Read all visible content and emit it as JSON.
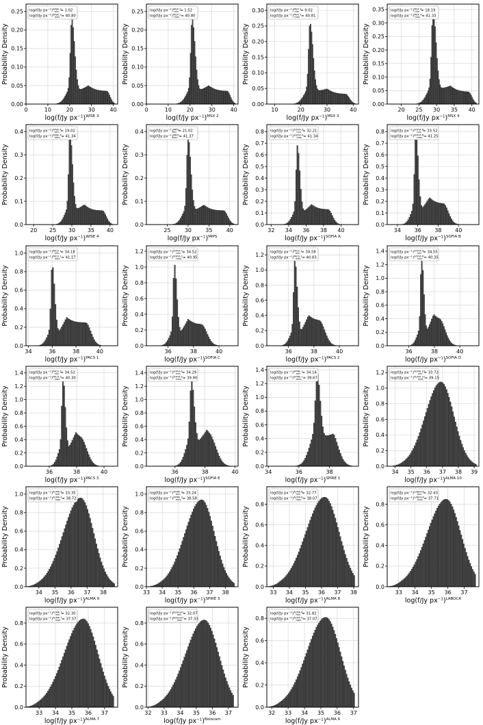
{
  "figure": {
    "ylabel": "Probability Density",
    "xlabel_base": "log(f/Jy px",
    "xlabel_exp": "−1",
    "xlabel_close": ")",
    "legend_prefix": "log(f/Jy px",
    "legend_min": "min",
    "legend_max": "max",
    "bar_color": "#4a4a4a",
    "edge_color": "#000000",
    "grid_color": "#d0d0d0"
  },
  "chart_data": [
    {
      "type": "bar",
      "band": "WISE 3",
      "x_ticks": [
        0,
        10,
        20,
        30,
        40
      ],
      "y_ticks": [
        0.0,
        0.05,
        0.1,
        0.15,
        0.2,
        0.25
      ],
      "xlim": [
        0,
        42
      ],
      "ylim": [
        0,
        0.27
      ],
      "min": "1.02",
      "max": "40.80",
      "peak": 21,
      "peak_y": 0.23,
      "spike": 0.8,
      "w1": 1.4,
      "w2": 2.8,
      "shoulder": 0.035,
      "sh_end": 37,
      "sh_w": 1.5,
      "x0": 10
    },
    {
      "type": "bar",
      "band": "MSX 2",
      "x_ticks": [
        0,
        10,
        20,
        30,
        40
      ],
      "y_ticks": [
        0.0,
        0.05,
        0.1,
        0.15,
        0.2,
        0.25
      ],
      "xlim": [
        0,
        42
      ],
      "ylim": [
        0,
        0.27
      ],
      "min": "1.52",
      "max": "40.80",
      "peak": 21,
      "peak_y": 0.23,
      "spike": 0.8,
      "w1": 1.4,
      "w2": 2.8,
      "shoulder": 0.035,
      "sh_end": 37,
      "sh_w": 1.5,
      "x0": 10
    },
    {
      "type": "bar",
      "band": "MSX 3",
      "x_ticks": [
        10,
        20,
        30,
        40
      ],
      "y_ticks": [
        0.0,
        0.05,
        0.1,
        0.15,
        0.2,
        0.25,
        0.3
      ],
      "xlim": [
        7,
        42
      ],
      "ylim": [
        0,
        0.32
      ],
      "min": "9.02",
      "max": "40.81",
      "peak": 23.5,
      "peak_y": 0.26,
      "spike": 0.8,
      "w1": 1.2,
      "w2": 2.4,
      "shoulder": 0.032,
      "sh_end": 37,
      "sh_w": 1.5,
      "x0": 16
    },
    {
      "type": "bar",
      "band": "MSX 4",
      "x_ticks": [
        20,
        25,
        30,
        35,
        40
      ],
      "y_ticks": [
        0.0,
        0.05,
        0.1,
        0.15,
        0.2,
        0.25,
        0.3,
        0.35
      ],
      "xlim": [
        16,
        42
      ],
      "ylim": [
        0,
        0.37
      ],
      "min": "18.19",
      "max": "41.33",
      "peak": 29,
      "peak_y": 0.35,
      "spike": 0.8,
      "w1": 0.9,
      "w2": 1.8,
      "shoulder": 0.045,
      "sh_end": 39,
      "sh_w": 1.0,
      "x0": 23
    },
    {
      "type": "bar",
      "band": "WISE 4",
      "x_ticks": [
        20,
        25,
        30,
        35,
        40
      ],
      "y_ticks": [
        0.0,
        0.1,
        0.2,
        0.3,
        0.4
      ],
      "xlim": [
        18,
        42
      ],
      "ylim": [
        0,
        0.43
      ],
      "min": "19.02",
      "max": "41.34",
      "peak": 29.5,
      "peak_y": 0.4,
      "spike": 0.8,
      "w1": 0.7,
      "w2": 1.4,
      "shoulder": 0.06,
      "sh_end": 38,
      "sh_w": 1.0,
      "x0": 24
    },
    {
      "type": "bar",
      "band": "MIPS",
      "x_ticks": [
        25,
        30,
        35,
        40
      ],
      "y_ticks": [
        0.0,
        0.1,
        0.2,
        0.3,
        0.4
      ],
      "xlim": [
        20,
        42
      ],
      "ylim": [
        0,
        0.43
      ],
      "min": "21.02",
      "max": "41.37",
      "peak": 30,
      "peak_y": 0.38,
      "spike": 0.8,
      "w1": 0.7,
      "w2": 1.4,
      "shoulder": 0.06,
      "sh_end": 38.5,
      "sh_w": 1.0,
      "x0": 25
    },
    {
      "type": "bar",
      "band": "SOFIA A",
      "x_ticks": [
        32,
        34,
        36,
        38,
        40
      ],
      "y_ticks": [
        0.0,
        0.1,
        0.2,
        0.3,
        0.4,
        0.5,
        0.6,
        0.7,
        0.8
      ],
      "xlim": [
        31.5,
        42
      ],
      "ylim": [
        0,
        0.86
      ],
      "min": "32.21",
      "max": "41.34",
      "peak": 35,
      "peak_y": 0.68,
      "spike": 0.8,
      "w1": 0.3,
      "w2": 0.6,
      "shoulder": 0.13,
      "sh_end": 38.5,
      "sh_w": 0.5,
      "x0": 33.5
    },
    {
      "type": "bar",
      "band": "SOFIA B",
      "x_ticks": [
        34,
        36,
        38,
        40
      ],
      "y_ticks": [
        0.0,
        0.1,
        0.2,
        0.3,
        0.4,
        0.5,
        0.6,
        0.7,
        0.8
      ],
      "xlim": [
        33,
        42
      ],
      "ylim": [
        0,
        0.86
      ],
      "min": "33.52",
      "max": "41.25",
      "peak": 35.8,
      "peak_y": 0.82,
      "spike": 0.8,
      "w1": 0.25,
      "w2": 0.5,
      "shoulder": 0.18,
      "sh_end": 38.5,
      "sh_w": 0.5,
      "x0": 34.5
    },
    {
      "type": "bar",
      "band": "PACS 1",
      "x_ticks": [
        34,
        36,
        38,
        40
      ],
      "y_ticks": [
        0.0,
        0.2,
        0.4,
        0.6,
        0.8,
        1.0
      ],
      "xlim": [
        33.8,
        41.5
      ],
      "ylim": [
        0,
        1.08
      ],
      "min": "34.18",
      "max": "41.17",
      "peak": 36,
      "peak_y": 0.88,
      "spike": 0.8,
      "w1": 0.22,
      "w2": 0.45,
      "shoulder": 0.25,
      "sh_end": 38.8,
      "sh_w": 0.45,
      "x0": 35
    },
    {
      "type": "bar",
      "band": "SOFIA C",
      "x_ticks": [
        36,
        38,
        40
      ],
      "y_ticks": [
        0.0,
        0.2,
        0.4,
        0.6,
        0.8,
        1.0,
        1.2
      ],
      "xlim": [
        34.3,
        41.5
      ],
      "ylim": [
        0,
        1.27
      ],
      "min": "34.52",
      "max": "40.95",
      "peak": 36.5,
      "peak_y": 1.04,
      "spike": 0.8,
      "w1": 0.2,
      "w2": 0.4,
      "shoulder": 0.27,
      "sh_end": 38.6,
      "sh_w": 0.45,
      "x0": 35.6
    },
    {
      "type": "bar",
      "band": "PACS 2",
      "x_ticks": [
        36,
        38,
        40
      ],
      "y_ticks": [
        0.0,
        0.2,
        0.4,
        0.6,
        0.8,
        1.0,
        1.2
      ],
      "xlim": [
        34.3,
        41.5
      ],
      "ylim": [
        0,
        1.32
      ],
      "min": "34.58",
      "max": "40.83",
      "peak": 36.5,
      "peak_y": 1.14,
      "spike": 0.8,
      "w1": 0.2,
      "w2": 0.4,
      "shoulder": 0.33,
      "sh_end": 38.4,
      "sh_w": 0.45,
      "x0": 35.6
    },
    {
      "type": "bar",
      "band": "SOFIA D",
      "x_ticks": [
        36,
        38,
        40
      ],
      "y_ticks": [
        0.0,
        0.2,
        0.4,
        0.6,
        0.8,
        1.0,
        1.2,
        1.4
      ],
      "xlim": [
        34.3,
        41.5
      ],
      "ylim": [
        0,
        1.48
      ],
      "min": "34.55",
      "max": "40.35",
      "peak": 37,
      "peak_y": 1.35,
      "spike": 0.8,
      "w1": 0.18,
      "w2": 0.35,
      "shoulder": 0.38,
      "sh_end": 38.4,
      "sh_w": 0.45,
      "x0": 35.8
    },
    {
      "type": "bar",
      "band": "PACS 3",
      "x_ticks": [
        36,
        38,
        40
      ],
      "y_ticks": [
        0.0,
        0.2,
        0.4,
        0.6,
        0.8,
        1.0,
        1.2,
        1.4
      ],
      "xlim": [
        34.3,
        41
      ],
      "ylim": [
        0,
        1.5
      ],
      "min": "34.52",
      "max": "40.30",
      "peak": 37,
      "peak_y": 1.35,
      "spike": 0.75,
      "w1": 0.18,
      "w2": 0.35,
      "shoulder": 0.4,
      "sh_end": 38.3,
      "sh_w": 0.45,
      "x0": 35.6
    },
    {
      "type": "bar",
      "band": "SOFIA E",
      "x_ticks": [
        36,
        38,
        40
      ],
      "y_ticks": [
        0.0,
        0.2,
        0.4,
        0.6,
        0.8,
        1.0,
        1.2,
        1.4
      ],
      "xlim": [
        34.1,
        40.2
      ],
      "ylim": [
        0,
        1.5
      ],
      "min": "34.29",
      "max": "39.90",
      "peak": 37.1,
      "peak_y": 1.3,
      "spike": 0.65,
      "w1": 0.2,
      "w2": 0.38,
      "shoulder": 0.4,
      "sh_end": 38.3,
      "sh_w": 0.45,
      "x0": 35.5
    },
    {
      "type": "bar",
      "band": "SPIRE 1",
      "x_ticks": [
        34,
        36,
        38
      ],
      "y_ticks": [
        0.0,
        0.2,
        0.4,
        0.6,
        0.8,
        1.0,
        1.2,
        1.4
      ],
      "xlim": [
        33.9,
        39.9
      ],
      "ylim": [
        0,
        1.45
      ],
      "min": "34.14",
      "max": "39.67",
      "peak": 37.2,
      "peak_y": 1.35,
      "spike": 0.6,
      "w1": 0.25,
      "w2": 0.4,
      "shoulder": 0.3,
      "sh_end": 38.2,
      "sh_w": 0.4,
      "x0": 35.3
    },
    {
      "type": "bar",
      "band": "ALMA 10",
      "x_ticks": [
        34,
        35,
        36,
        37,
        38,
        39
      ],
      "y_ticks": [
        0.0,
        0.2,
        0.4,
        0.6,
        0.8,
        1.0,
        1.2
      ],
      "xlim": [
        33.5,
        39.3
      ],
      "ylim": [
        0,
        1.28
      ],
      "min": "33.72",
      "max": "39.15",
      "peak": 36.9,
      "peak_y": 1.08,
      "spike": 0,
      "w1": 0.55,
      "w2": 0.45,
      "shoulder": 0,
      "sh_end": 37,
      "sh_w": 0.3,
      "x0": 34.5
    },
    {
      "type": "bar",
      "band": "ALMA 9",
      "x_ticks": [
        34,
        35,
        36,
        37,
        38
      ],
      "y_ticks": [
        0.0,
        0.2,
        0.4,
        0.6,
        0.8,
        1.0
      ],
      "xlim": [
        33.2,
        38.9
      ],
      "ylim": [
        0,
        1.08
      ],
      "min": "33.35",
      "max": "38.72",
      "peak": 36.6,
      "peak_y": 0.96,
      "spike": 0,
      "w1": 0.6,
      "w2": 0.45,
      "shoulder": 0,
      "sh_end": 37,
      "sh_w": 0.3,
      "x0": 34.0
    },
    {
      "type": "bar",
      "band": "SPIRE 3",
      "x_ticks": [
        33,
        34,
        35,
        36,
        37,
        38
      ],
      "y_ticks": [
        0.0,
        0.2,
        0.4,
        0.6,
        0.8,
        1.0
      ],
      "xlim": [
        33,
        38.8
      ],
      "ylim": [
        0,
        1.08
      ],
      "min": "33.24",
      "max": "38.58",
      "peak": 36.5,
      "peak_y": 0.94,
      "spike": 0,
      "w1": 0.6,
      "w2": 0.45,
      "shoulder": 0,
      "sh_end": 37,
      "sh_w": 0.3,
      "x0": 33.9
    },
    {
      "type": "bar",
      "band": "ALMA 8",
      "x_ticks": [
        33,
        34,
        35,
        36,
        37,
        38
      ],
      "y_ticks": [
        0.0,
        0.2,
        0.4,
        0.6,
        0.8
      ],
      "xlim": [
        32.6,
        38.3
      ],
      "ylim": [
        0,
        0.97
      ],
      "min": "32.77",
      "max": "38.07",
      "peak": 36.2,
      "peak_y": 0.87,
      "spike": 0,
      "w1": 0.65,
      "w2": 0.5,
      "shoulder": 0,
      "sh_end": 37,
      "sh_w": 0.3,
      "x0": 33.5
    },
    {
      "type": "bar",
      "band": "LABOCA",
      "x_ticks": [
        33,
        34,
        35,
        36,
        37
      ],
      "y_ticks": [
        0.0,
        0.2,
        0.4,
        0.6,
        0.8
      ],
      "xlim": [
        32.3,
        37.9
      ],
      "ylim": [
        0,
        0.97
      ],
      "min": "32.43",
      "max": "37.71",
      "peak": 35.9,
      "peak_y": 0.85,
      "spike": 0,
      "w1": 0.65,
      "w2": 0.5,
      "shoulder": 0,
      "sh_end": 37,
      "sh_w": 0.3,
      "x0": 33.2
    },
    {
      "type": "bar",
      "band": "ALMA 7",
      "x_ticks": [
        33,
        34,
        35,
        36,
        37
      ],
      "y_ticks": [
        0.0,
        0.2,
        0.4,
        0.6,
        0.8
      ],
      "xlim": [
        32.2,
        37.8
      ],
      "ylim": [
        0,
        0.95
      ],
      "min": "32.30",
      "max": "37.57",
      "peak": 35.7,
      "peak_y": 0.84,
      "spike": 0,
      "w1": 0.65,
      "w2": 0.5,
      "shoulder": 0,
      "sh_end": 37,
      "sh_w": 0.3,
      "x0": 33.0
    },
    {
      "type": "bar",
      "band": "Bolocam",
      "x_ticks": [
        32,
        33,
        34,
        35,
        36,
        37
      ],
      "y_ticks": [
        0.0,
        0.2,
        0.4,
        0.6,
        0.8
      ],
      "xlim": [
        31.9,
        37.6
      ],
      "ylim": [
        0,
        0.95
      ],
      "min": "32.07",
      "max": "37.33",
      "peak": 35.5,
      "peak_y": 0.83,
      "spike": 0,
      "w1": 0.65,
      "w2": 0.5,
      "shoulder": 0,
      "sh_end": 37,
      "sh_w": 0.3,
      "x0": 32.8
    },
    {
      "type": "bar",
      "band": "ALMA 6",
      "x_ticks": [
        32,
        33,
        34,
        35,
        36,
        37
      ],
      "y_ticks": [
        0.0,
        0.2,
        0.4,
        0.6,
        0.8
      ],
      "xlim": [
        31.7,
        37.3
      ],
      "ylim": [
        0,
        0.9
      ],
      "min": "31.82",
      "max": "37.07",
      "peak": 35.3,
      "peak_y": 0.81,
      "spike": 0,
      "w1": 0.65,
      "w2": 0.5,
      "shoulder": 0,
      "sh_end": 37,
      "sh_w": 0.3,
      "x0": 32.6
    }
  ]
}
